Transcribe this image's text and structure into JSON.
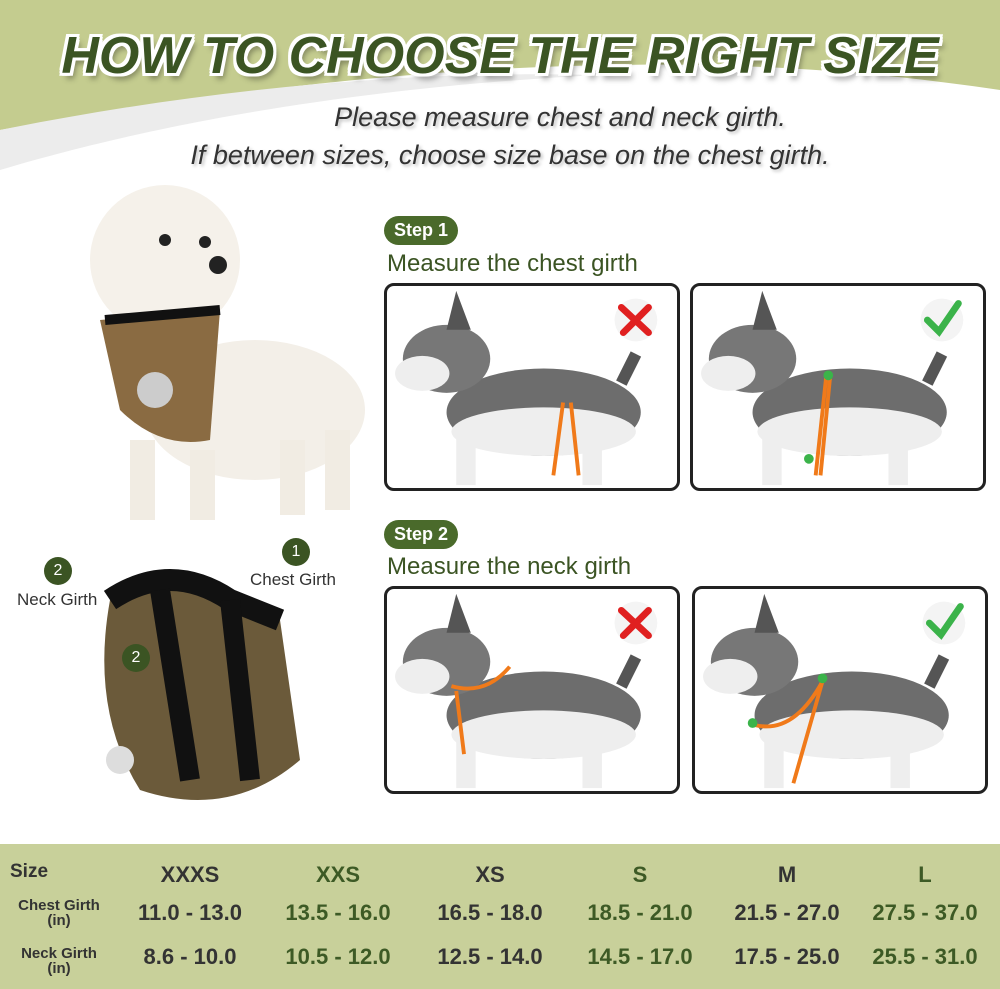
{
  "title": "HOW TO CHOOSE THE RIGHT SIZE",
  "subtitle": [
    "Please measure chest and neck girth.",
    "If between sizes, choose size base on the chest girth."
  ],
  "colors": {
    "background_green": "#c4cc8f",
    "dark_green": "#3b5423",
    "wrong": "#e02020",
    "right": "#3bb34a",
    "strap": "#f07a1a"
  },
  "step1": {
    "badge": "Step 1",
    "text": "Measure the chest girth"
  },
  "step2": {
    "badge": "Step 2",
    "text": "Measure the neck girth"
  },
  "harness": {
    "label1_num": "1",
    "label1": "Chest Girth",
    "label2_num": "2",
    "label2": "Neck Girth",
    "inner_num": "2"
  },
  "icons": {
    "wrong": "cross-mark-icon",
    "right": "check-mark-icon"
  },
  "table": {
    "row_labels": {
      "size": "Size",
      "chest": "Chest Girth",
      "chest_unit": "(in)",
      "neck": "Neck Girth",
      "neck_unit": "(in)"
    },
    "columns": [
      {
        "size": "XXXS",
        "chest": "11.0 - 13.0",
        "neck": "8.6 - 10.0"
      },
      {
        "size": "XXS",
        "chest": "13.5 - 16.0",
        "neck": "10.5 - 12.0"
      },
      {
        "size": "XS",
        "chest": "16.5 - 18.0",
        "neck": "12.5 - 14.0"
      },
      {
        "size": "S",
        "chest": "18.5 - 21.0",
        "neck": "14.5 - 17.0"
      },
      {
        "size": "M",
        "chest": "21.5 - 27.0",
        "neck": "17.5 - 25.0"
      },
      {
        "size": "L",
        "chest": "27.5 - 37.0",
        "neck": "25.5 - 31.0"
      }
    ]
  }
}
